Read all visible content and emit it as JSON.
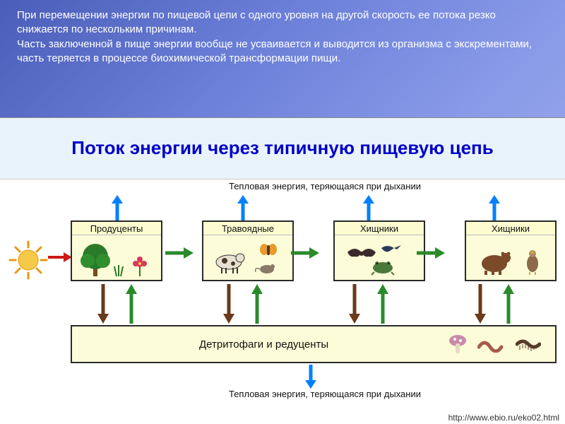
{
  "slide": {
    "top_text": "При перемещении энергии по пищевой цепи с одного уровня на другой скорость ее потока резко снижается по нескольким причинам.\nЧасть заключенной в пище энергии вообще не усваивается и выводится из организма с экскрементами, часть теряется в процессе биохимической трансформации пищи."
  },
  "diagram": {
    "title": "Поток энергии через типичную пищевую цепь",
    "heat_loss_top": "Тепловая энергия, теряющаяся при дыхании",
    "heat_loss_bottom": "Тепловая энергия, теряющаяся при дыхании",
    "trophic_levels": [
      {
        "label": "Продуценты",
        "icon": "plants"
      },
      {
        "label": "Травоядные",
        "icon": "herbivores"
      },
      {
        "label": "Хищники",
        "icon": "predators1"
      },
      {
        "label": "Хищники",
        "icon": "predators2"
      }
    ],
    "detritus_label": "Детритофаги и редуценты",
    "url": "http://www.ebio.ru/eko02.html"
  },
  "colors": {
    "arrow_blue": "#0080ff",
    "arrow_red": "#d01818",
    "arrow_green": "#2a8a2a",
    "arrow_brown": "#6b3a1a",
    "box_bg": "#fdfcd8",
    "box_border": "#2b2b2b",
    "title_color": "#0000c8",
    "title_band_bg": "#e9f3fb"
  }
}
